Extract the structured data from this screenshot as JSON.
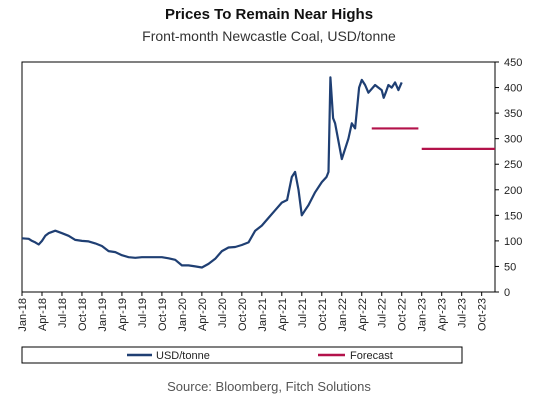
{
  "header": {
    "title": "Prices To Remain Near Highs",
    "subtitle": "Front-month Newcastle Coal, USD/tonne"
  },
  "footer": {
    "source": "Source: Bloomberg, Fitch Solutions"
  },
  "colors": {
    "usd_line": "#1f3f73",
    "forecast_line": "#b3124a",
    "frame": "#000000"
  },
  "chart_data": {
    "type": "line",
    "title": "Prices To Remain Near Highs",
    "subtitle": "Front-month Newcastle Coal, USD/tonne",
    "xlabel": "",
    "ylabel": "",
    "ylim": [
      0,
      450
    ],
    "yticks": [
      0,
      50,
      100,
      150,
      200,
      250,
      300,
      350,
      400,
      450
    ],
    "y_axis_side": "right",
    "xlim": [
      0,
      71
    ],
    "x_tick_labels": [
      "Jan-18",
      "Apr-18",
      "Jul-18",
      "Oct-18",
      "Jan-19",
      "Apr-19",
      "Jul-19",
      "Oct-19",
      "Jan-20",
      "Apr-20",
      "Jul-20",
      "Oct-20",
      "Jan-21",
      "Apr-21",
      "Jul-21",
      "Oct-21",
      "Jan-22",
      "Apr-22",
      "Jul-22",
      "Oct-22",
      "Jan-23",
      "Apr-23",
      "Jul-23",
      "Oct-23"
    ],
    "legend_position": "bottom",
    "series": [
      {
        "name": "USD/tonne",
        "x": [
          0,
          1,
          1.5,
          2,
          2.5,
          3,
          3.5,
          4,
          5,
          6,
          7,
          8,
          9,
          10,
          11,
          12,
          13,
          14,
          15,
          16,
          17,
          18,
          19,
          20,
          21,
          22,
          23,
          24,
          25,
          26,
          27,
          28,
          29,
          30,
          31,
          32,
          33,
          34,
          35,
          36,
          37,
          38,
          39,
          39.8,
          40.5,
          41,
          41.5,
          42,
          42.5,
          43,
          44,
          45,
          45.7,
          46,
          46.3,
          46.7,
          47,
          48,
          49,
          49.5,
          50,
          50.3,
          50.6,
          51,
          51.5,
          52,
          53,
          53.5,
          54,
          54.3,
          54.6,
          55,
          55.5,
          56,
          56.5,
          57
        ],
        "values": [
          105,
          104,
          100,
          97,
          93,
          100,
          110,
          115,
          120,
          115,
          110,
          102,
          100,
          99,
          95,
          90,
          80,
          78,
          72,
          68,
          67,
          68,
          68,
          68,
          68,
          66,
          63,
          52,
          52,
          50,
          48,
          55,
          65,
          80,
          87,
          88,
          92,
          97,
          120,
          130,
          145,
          160,
          175,
          180,
          225,
          235,
          200,
          150,
          160,
          170,
          195,
          215,
          225,
          235,
          420,
          340,
          330,
          260,
          300,
          330,
          320,
          360,
          400,
          415,
          405,
          390,
          405,
          400,
          395,
          380,
          390,
          405,
          400,
          410,
          395,
          410
        ]
      },
      {
        "name": "Forecast",
        "segments": [
          {
            "x": [
              52.5,
              59.5
            ],
            "value": 320
          },
          {
            "x": [
              60,
              71
            ],
            "value": 280
          }
        ]
      }
    ]
  }
}
